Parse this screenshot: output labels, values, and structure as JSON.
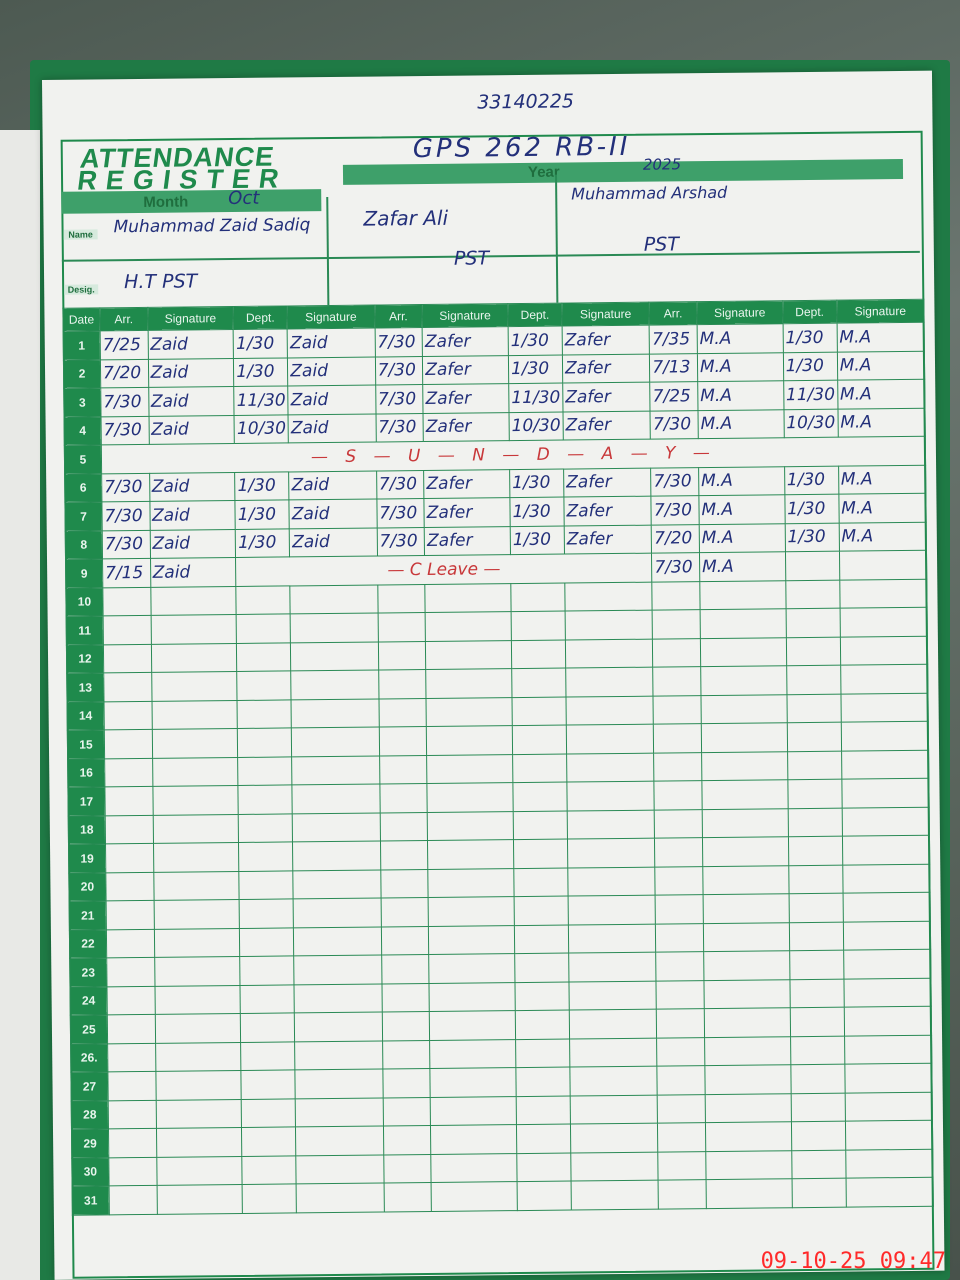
{
  "register": {
    "title_line1": "ATTENDANCE",
    "title_line2": "REGISTER",
    "school_code": "33140225",
    "school_name": "GPS 262 RB-II",
    "month_label": "Month",
    "month_value": "Oct",
    "year_label": "Year",
    "year_value": "2025",
    "name_label": "Name",
    "desig_label": "Desig.",
    "teachers": [
      {
        "name": "Muhammad Zaid Sadiq",
        "designation": "H.T PST"
      },
      {
        "name": "Zafar Ali",
        "designation": "PST"
      },
      {
        "name": "Muhammad Arshad",
        "designation": "PST"
      }
    ],
    "headers": {
      "date": "Date",
      "arr": "Arr.",
      "signature": "Signature",
      "dept": "Dept."
    },
    "rows": [
      {
        "date": "1",
        "cells": [
          "7/25",
          "Zaid",
          "1/30",
          "Zaid",
          "7/30",
          "Zafer",
          "1/30",
          "Zafer",
          "7/35",
          "M.A",
          "1/30",
          "M.A"
        ]
      },
      {
        "date": "2",
        "cells": [
          "7/20",
          "Zaid",
          "1/30",
          "Zaid",
          "7/30",
          "Zafer",
          "1/30",
          "Zafer",
          "7/13",
          "M.A",
          "1/30",
          "M.A"
        ]
      },
      {
        "date": "3",
        "cells": [
          "7/30",
          "Zaid",
          "11/30",
          "Zaid",
          "7/30",
          "Zafer",
          "11/30",
          "Zafer",
          "7/25",
          "M.A",
          "11/30",
          "M.A"
        ]
      },
      {
        "date": "4",
        "cells": [
          "7/30",
          "Zaid",
          "10/30",
          "Zaid",
          "7/30",
          "Zafer",
          "10/30",
          "Zafer",
          "7/30",
          "M.A",
          "10/30",
          "M.A"
        ]
      },
      {
        "date": "5",
        "note": "— S — U — N — D — A — Y —"
      },
      {
        "date": "6",
        "cells": [
          "7/30",
          "Zaid",
          "1/30",
          "Zaid",
          "7/30",
          "Zafer",
          "1/30",
          "Zafer",
          "7/30",
          "M.A",
          "1/30",
          "M.A"
        ]
      },
      {
        "date": "7",
        "cells": [
          "7/30",
          "Zaid",
          "1/30",
          "Zaid",
          "7/30",
          "Zafer",
          "1/30",
          "Zafer",
          "7/30",
          "M.A",
          "1/30",
          "M.A"
        ]
      },
      {
        "date": "8",
        "cells": [
          "7/30",
          "Zaid",
          "1/30",
          "Zaid",
          "7/30",
          "Zafer",
          "1/30",
          "Zafer",
          "7/20",
          "M.A",
          "1/30",
          "M.A"
        ]
      },
      {
        "date": "9",
        "cells": [
          "7/15",
          "Zaid",
          "",
          "",
          "",
          "",
          "",
          "",
          "7/30",
          "M.A",
          "",
          ""
        ],
        "leave_note": "— C Leave —"
      },
      {
        "date": "10"
      },
      {
        "date": "11"
      },
      {
        "date": "12"
      },
      {
        "date": "13"
      },
      {
        "date": "14"
      },
      {
        "date": "15"
      },
      {
        "date": "16"
      },
      {
        "date": "17"
      },
      {
        "date": "18"
      },
      {
        "date": "19"
      },
      {
        "date": "20"
      },
      {
        "date": "21"
      },
      {
        "date": "22"
      },
      {
        "date": "23"
      },
      {
        "date": "24"
      },
      {
        "date": "25"
      },
      {
        "date": "26."
      },
      {
        "date": "27"
      },
      {
        "date": "28"
      },
      {
        "date": "29"
      },
      {
        "date": "30"
      },
      {
        "date": "31"
      }
    ]
  },
  "timestamp": "09-10-25 09:47",
  "colors": {
    "register_green": "#1f8a4c",
    "ink_blue": "#23307a",
    "ink_red": "#c8383a",
    "timestamp_red": "#ff2a2a"
  }
}
